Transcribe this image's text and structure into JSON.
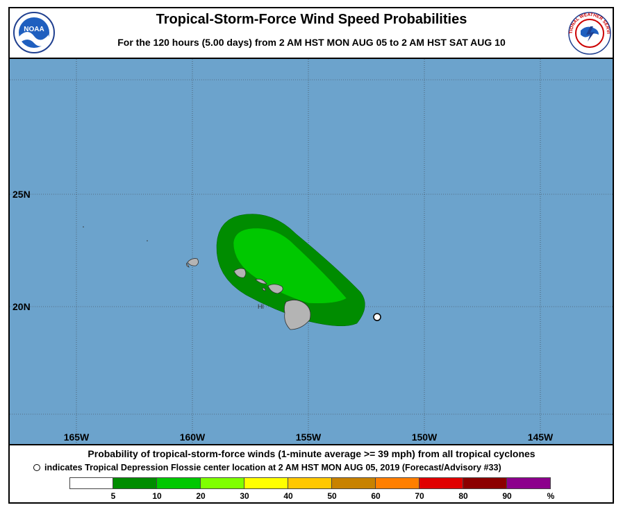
{
  "title": "Tropical-Storm-Force Wind Speed Probabilities",
  "subtitle": "For the 120 hours (5.00 days) from 2 AM HST MON AUG 05 to 2 AM HST SAT AUG 10",
  "logos": {
    "noaa_text": "NOAA",
    "nws_text": "NATIONAL WEATHER SERVICE"
  },
  "map": {
    "ocean_color": "#6ca3cc",
    "land_color": "#b4b4b4",
    "lat_labels": [
      "25N",
      "20N"
    ],
    "lon_labels": [
      "165W",
      "160W",
      "155W",
      "150W",
      "145W"
    ],
    "place_label": "HI",
    "prob_colors": {
      "band_5_10": "#008c00",
      "band_10_20": "#00c800"
    }
  },
  "footer": {
    "line1": "Probability of tropical-storm-force winds (1-minute average >= 39 mph) from all tropical cyclones",
    "line2": "indicates Tropical Depression Flossie center location at 2 AM HST MON AUG 05, 2019 (Forecast/Advisory #33)"
  },
  "legend": {
    "colors": [
      "#ffffff",
      "#008c00",
      "#00c800",
      "#7fff00",
      "#ffff00",
      "#ffc800",
      "#c88200",
      "#ff7f00",
      "#e00000",
      "#8c0000",
      "#8c008c"
    ],
    "ticks": [
      "5",
      "10",
      "20",
      "30",
      "40",
      "50",
      "60",
      "70",
      "80",
      "90",
      "%"
    ]
  }
}
